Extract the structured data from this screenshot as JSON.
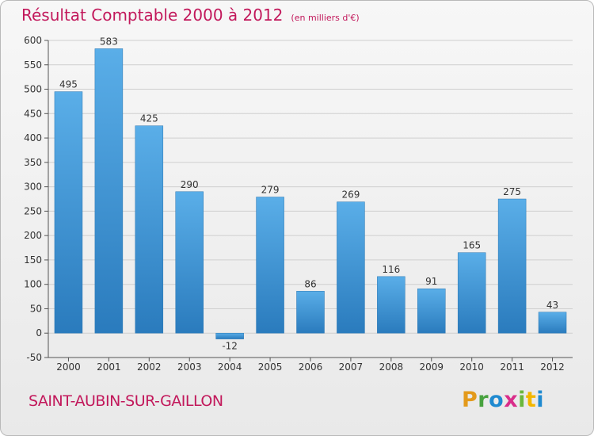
{
  "title": "Résultat Comptable 2000 à 2012",
  "subtitle": "(en milliers d'€)",
  "city": "SAINT-AUBIN-SUR-GAILLON",
  "logo": {
    "text": "Proxiti"
  },
  "colors": {
    "bar": "#3d93d8",
    "bar_dark": "#2577b8",
    "title": "#c2185b"
  },
  "chart_data": {
    "type": "bar",
    "categories": [
      "2000",
      "2001",
      "2002",
      "2003",
      "2004",
      "2005",
      "2006",
      "2007",
      "2008",
      "2009",
      "2010",
      "2011",
      "2012"
    ],
    "values": [
      495,
      583,
      425,
      290,
      -12,
      279,
      86,
      269,
      116,
      91,
      165,
      275,
      43
    ],
    "ylim": [
      -50,
      600
    ],
    "yticks": [
      -50,
      0,
      50,
      100,
      150,
      200,
      250,
      300,
      350,
      400,
      450,
      500,
      550,
      600
    ],
    "grid": true,
    "xlabel": "",
    "ylabel": ""
  }
}
